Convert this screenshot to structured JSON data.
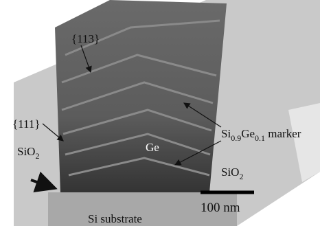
{
  "labels": {
    "facet_113": "{113}",
    "facet_111": "{111}",
    "oxide_left": {
      "base": "SiO",
      "sub": "2"
    },
    "germanium": "Ge",
    "marker": {
      "si": "Si",
      "si_sub": "0.9",
      "ge": "Ge",
      "ge_sub": "0.1",
      "rest": " marker"
    },
    "oxide_right": {
      "base": "SiO",
      "sub": "2"
    },
    "scale_bar": "100 nm",
    "substrate": "Si substrate"
  }
}
